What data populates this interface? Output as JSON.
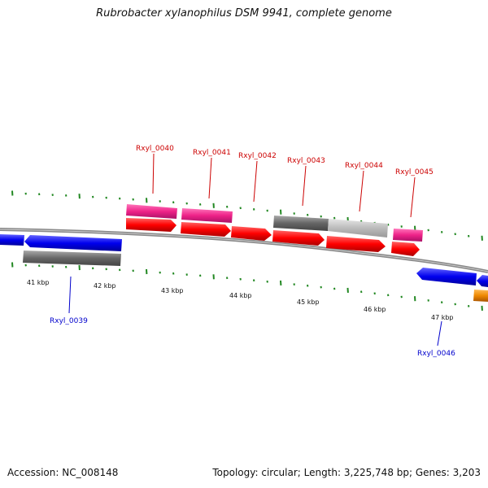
{
  "title": "Rubrobacter xylanophilus DSM 9941, complete genome",
  "footer": {
    "accession_label": "Accession: NC_008148",
    "stats_label": "Topology: circular; Length: 3,225,748 bp; Genes: 3,203"
  },
  "colors": {
    "cds_forward": "#ff0000",
    "cds_reverse": "#0000ee",
    "gene_pink": "#ee2288",
    "gene_gray": "#666666",
    "gene_lightgray": "#bbbbbb",
    "orange": "#ee8800",
    "tick": "#228822",
    "label_forward": "#cc0000",
    "label_reverse": "#0000cc",
    "backbone": "#888888"
  },
  "kbp_labels": [
    "41 kbp",
    "42 kbp",
    "43 kbp",
    "44 kbp",
    "45 kbp",
    "46 kbp",
    "47 kbp"
  ],
  "genes": [
    {
      "name": "Rxyl_0039",
      "strand": "reverse"
    },
    {
      "name": "Rxyl_0040",
      "strand": "forward"
    },
    {
      "name": "Rxyl_0041",
      "strand": "forward"
    },
    {
      "name": "Rxyl_0042",
      "strand": "forward"
    },
    {
      "name": "Rxyl_0043",
      "strand": "forward"
    },
    {
      "name": "Rxyl_0044",
      "strand": "forward"
    },
    {
      "name": "Rxyl_0045",
      "strand": "forward"
    },
    {
      "name": "Rxyl_0046",
      "strand": "reverse"
    }
  ]
}
